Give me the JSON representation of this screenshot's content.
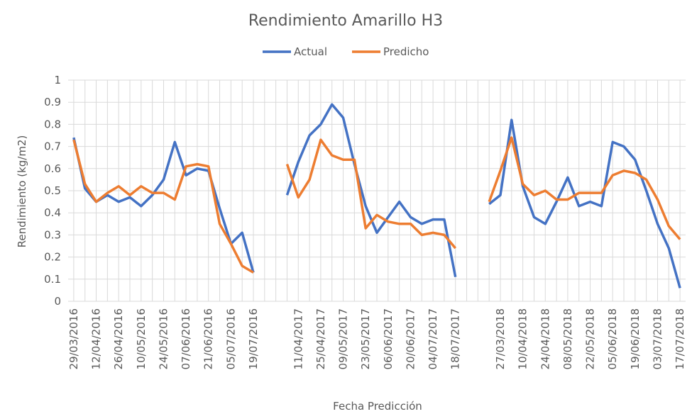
{
  "chart_data": {
    "type": "line",
    "title": "Rendimiento Amarillo H3",
    "xlabel": "Fecha Predicción",
    "ylabel": "Rendimiento (kg/m2)",
    "categories": [
      "29/03/2016",
      null,
      "12/04/2016",
      null,
      "26/04/2016",
      null,
      "10/05/2016",
      null,
      "24/05/2016",
      null,
      "07/06/2016",
      null,
      "21/06/2016",
      null,
      "05/07/2016",
      null,
      "19/07/2016",
      null,
      null,
      null,
      "11/04/2017",
      null,
      "25/04/2017",
      null,
      "09/05/2017",
      null,
      "23/05/2017",
      null,
      "06/06/2017",
      null,
      "20/06/2017",
      null,
      "04/07/2017",
      null,
      "18/07/2017",
      null,
      null,
      null,
      "27/03/2018",
      null,
      "10/04/2018",
      null,
      "24/04/2018",
      null,
      "08/05/2018",
      null,
      "22/05/2018",
      null,
      "05/06/2018",
      null,
      "19/06/2018",
      null,
      "03/07/2018",
      null,
      "17/07/2018"
    ],
    "series": [
      {
        "name": "Actual",
        "color": "#4472c4",
        "values": [
          0.74,
          0.51,
          0.45,
          0.48,
          0.45,
          0.47,
          0.43,
          0.48,
          0.55,
          0.72,
          0.57,
          0.6,
          0.59,
          0.42,
          0.26,
          0.31,
          0.13,
          null,
          null,
          0.48,
          0.63,
          0.75,
          0.8,
          0.89,
          0.83,
          0.62,
          0.43,
          0.31,
          0.38,
          0.45,
          0.38,
          0.35,
          0.37,
          0.37,
          0.11,
          null,
          null,
          0.44,
          0.48,
          0.82,
          0.52,
          0.38,
          0.35,
          0.45,
          0.56,
          0.43,
          0.45,
          0.43,
          0.72,
          0.7,
          0.64,
          0.5,
          0.35,
          0.24,
          0.06
        ]
      },
      {
        "name": "Predicho",
        "color": "#ed7d31",
        "values": [
          0.73,
          0.53,
          0.45,
          0.49,
          0.52,
          0.48,
          0.52,
          0.49,
          0.49,
          0.46,
          0.61,
          0.62,
          0.61,
          0.35,
          0.26,
          0.16,
          0.13,
          null,
          null,
          0.62,
          0.47,
          0.55,
          0.73,
          0.66,
          0.64,
          0.64,
          0.33,
          0.39,
          0.36,
          0.35,
          0.35,
          0.3,
          0.31,
          0.3,
          0.24,
          null,
          null,
          0.45,
          0.59,
          0.74,
          0.53,
          0.48,
          0.5,
          0.46,
          0.46,
          0.49,
          0.49,
          0.49,
          0.57,
          0.59,
          0.58,
          0.55,
          0.46,
          0.34,
          0.28
        ]
      }
    ],
    "ylim": [
      0,
      1
    ],
    "yticks": [
      0,
      0.1,
      0.2,
      0.3,
      0.4,
      0.5,
      0.6,
      0.7,
      0.8,
      0.9,
      1
    ],
    "grid": true,
    "legend": "top"
  }
}
